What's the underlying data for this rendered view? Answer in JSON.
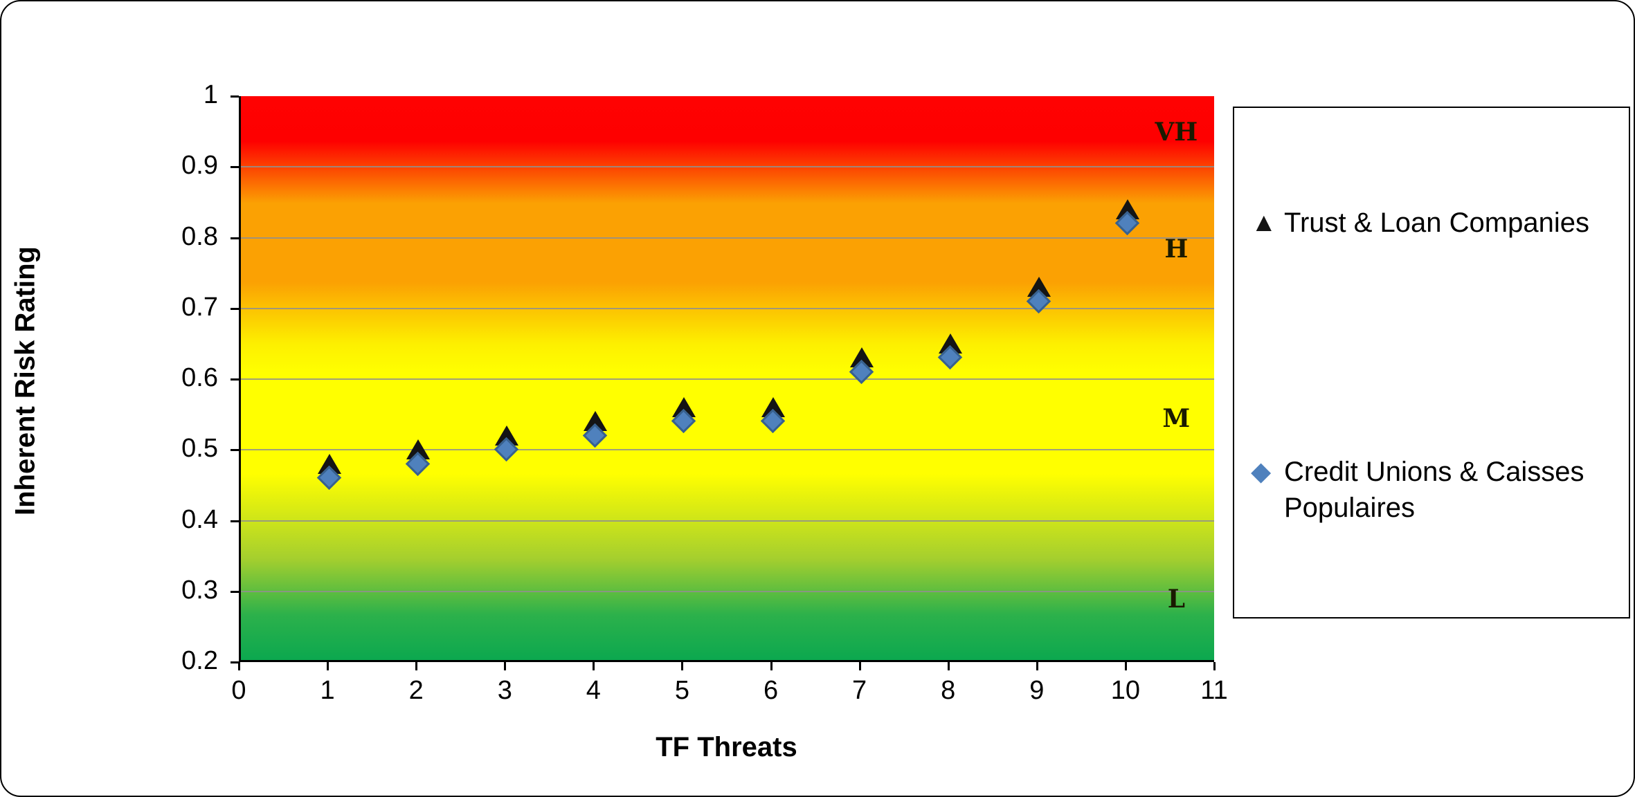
{
  "chart_data": {
    "type": "scatter",
    "title": "",
    "xlabel": "TF Threats",
    "ylabel": "Inherent Risk Rating",
    "xlim": [
      0,
      11
    ],
    "ylim": [
      0.2,
      1
    ],
    "x_ticks": [
      0,
      1,
      2,
      3,
      4,
      5,
      6,
      7,
      8,
      9,
      10,
      11
    ],
    "y_ticks": [
      0.2,
      0.3,
      0.4,
      0.5,
      0.6,
      0.7,
      0.8,
      0.9,
      1
    ],
    "grid": "horizontal gray lines at each 0.1",
    "legend_position": "right",
    "series": [
      {
        "name": "Trust & Loan Companies",
        "marker": "triangle",
        "color": "#141414",
        "x": [
          1,
          2,
          3,
          4,
          5,
          6,
          7,
          8,
          9,
          10
        ],
        "y": [
          0.48,
          0.5,
          0.52,
          0.54,
          0.56,
          0.56,
          0.63,
          0.65,
          0.73,
          0.84
        ]
      },
      {
        "name": "Credit Unions & Caisses Populaires",
        "marker": "diamond",
        "color": "#4f81bd",
        "marker_border": "#38618e",
        "x": [
          1,
          2,
          3,
          4,
          5,
          6,
          7,
          8,
          9,
          10
        ],
        "y": [
          0.46,
          0.48,
          0.5,
          0.52,
          0.54,
          0.54,
          0.61,
          0.63,
          0.71,
          0.82
        ]
      }
    ],
    "band_labels": [
      {
        "text": "VH",
        "x": 10.55,
        "y": 0.945
      },
      {
        "text": "H",
        "x": 10.55,
        "y": 0.78
      },
      {
        "text": "M",
        "x": 10.55,
        "y": 0.54
      },
      {
        "text": "L",
        "x": 10.55,
        "y": 0.285
      }
    ],
    "background_bands": {
      "very_high_color": "#ff0000",
      "high_color": "#fba103",
      "medium_color": "#ffff00",
      "low_color": "#0ca84f"
    }
  },
  "legend": {
    "items": [
      {
        "symbol": "▲",
        "label": "Trust & Loan Companies"
      },
      {
        "symbol": "◆",
        "label": "Credit Unions & Caisses Populaires"
      }
    ]
  }
}
